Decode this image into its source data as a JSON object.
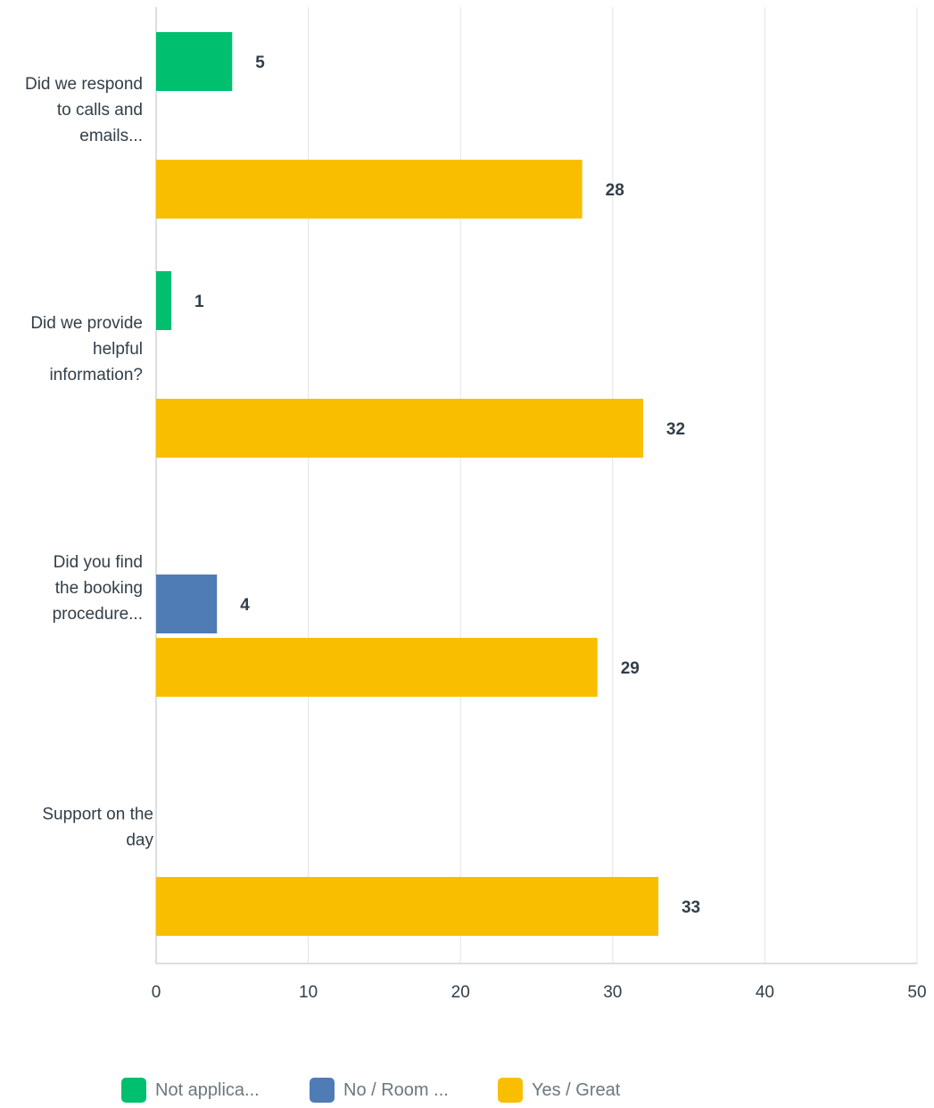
{
  "chart_data": {
    "type": "bar",
    "orientation": "horizontal",
    "categories": [
      [
        "Did we respond",
        "to calls and",
        "emails..."
      ],
      [
        "Did we provide",
        "helpful",
        "information?"
      ],
      [
        "Did you find",
        "the booking",
        "procedure..."
      ],
      [
        "Support on the",
        "day"
      ]
    ],
    "series": [
      {
        "name": "Not applica...",
        "color": "#00bf6f",
        "values": [
          5,
          1,
          0,
          0
        ]
      },
      {
        "name": "No / Room ...",
        "color": "#507cb6",
        "values": [
          0,
          0,
          4,
          0
        ]
      },
      {
        "name": "Yes / Great",
        "color": "#f9be00",
        "values": [
          28,
          32,
          29,
          33
        ]
      }
    ],
    "xlim": [
      0,
      50
    ],
    "xticks": [
      "0",
      "10",
      "20",
      "30",
      "40",
      "50"
    ],
    "grid": true,
    "legend_position": "bottom",
    "title": "",
    "xlabel": "",
    "ylabel": ""
  }
}
